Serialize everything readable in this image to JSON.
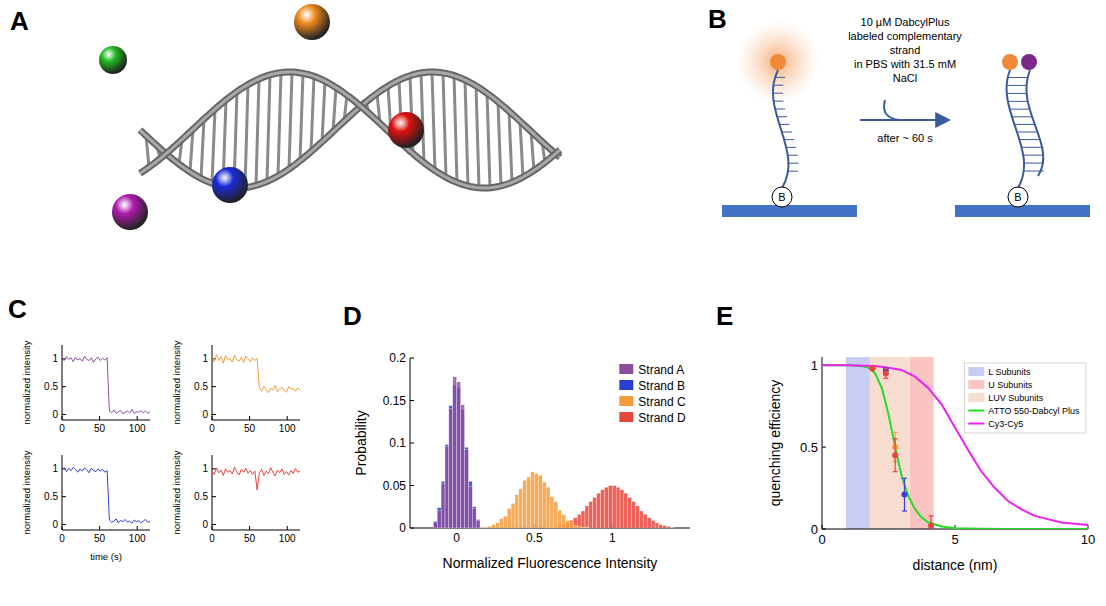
{
  "panel_labels": [
    "A",
    "B",
    "C",
    "D",
    "E"
  ],
  "diagram_b": {
    "reagent_lines": [
      "10 µM DabcylPlus",
      "labeled complementary",
      "strand",
      "in PBS with 31.5 mM",
      "NaCl"
    ],
    "time_text": "after ~ 60 s",
    "base_label": "B"
  },
  "chart_data": [
    {
      "type": "line",
      "ylabel": "normalized intensity",
      "color": "#8e4d9c",
      "xlim": [
        0,
        117
      ],
      "xticks": [
        0,
        50,
        100
      ],
      "ylim": [
        -0.1,
        1.25
      ],
      "yticks": [
        0,
        0.5,
        1
      ],
      "x": [
        0,
        3,
        6,
        9,
        12,
        15,
        18,
        21,
        24,
        27,
        30,
        33,
        36,
        39,
        42,
        45,
        48,
        51,
        54,
        57,
        60,
        63,
        66,
        69,
        72,
        75,
        78,
        81,
        84,
        87,
        90,
        93,
        96,
        99,
        102,
        105,
        108,
        111,
        114,
        117
      ],
      "values": [
        1.0,
        0.97,
        1.04,
        0.99,
        1.02,
        0.95,
        1.03,
        0.98,
        1.01,
        0.96,
        1.05,
        0.99,
        0.97,
        1.02,
        0.94,
        1.0,
        1.03,
        0.97,
        1.01,
        0.98,
        1.02,
        0.06,
        0.03,
        0.08,
        0.02,
        0.05,
        0.07,
        0.01,
        0.04,
        0.06,
        0.03,
        0.09,
        0.02,
        0.05,
        0.04,
        0.07,
        0.03,
        0.06,
        0.02,
        0.05
      ]
    },
    {
      "type": "line",
      "ylabel": "normalized intensity",
      "color": "#f5a03a",
      "xlim": [
        0,
        117
      ],
      "xticks": [
        0,
        50,
        100
      ],
      "ylim": [
        -0.1,
        1.25
      ],
      "yticks": [
        0,
        0.5,
        1
      ],
      "x": [
        0,
        3,
        6,
        9,
        12,
        15,
        18,
        21,
        24,
        27,
        30,
        33,
        36,
        39,
        42,
        45,
        48,
        51,
        54,
        57,
        60,
        63,
        66,
        69,
        72,
        75,
        78,
        81,
        84,
        87,
        90,
        93,
        96,
        99,
        102,
        105,
        108,
        111,
        114,
        117
      ],
      "values": [
        1.02,
        0.95,
        1.08,
        0.97,
        1.04,
        0.92,
        1.06,
        0.99,
        1.01,
        0.94,
        1.07,
        0.98,
        0.96,
        1.03,
        0.93,
        1.05,
        1.0,
        0.95,
        1.02,
        0.97,
        1.01,
        0.48,
        0.42,
        0.51,
        0.45,
        0.39,
        0.47,
        0.44,
        0.52,
        0.41,
        0.46,
        0.49,
        0.43,
        0.4,
        0.5,
        0.45,
        0.47,
        0.42,
        0.48,
        0.44
      ]
    },
    {
      "type": "line",
      "ylabel": "normalized intensity",
      "xlabel": "time (s)",
      "color": "#3b3fd8",
      "xlim": [
        0,
        117
      ],
      "xticks": [
        0,
        50,
        100
      ],
      "ylim": [
        -0.1,
        1.25
      ],
      "yticks": [
        0,
        0.5,
        1
      ],
      "x": [
        0,
        3,
        6,
        9,
        12,
        15,
        18,
        21,
        24,
        27,
        30,
        33,
        36,
        39,
        42,
        45,
        48,
        51,
        54,
        57,
        60,
        63,
        66,
        69,
        72,
        75,
        78,
        81,
        84,
        87,
        90,
        93,
        96,
        99,
        102,
        105,
        108,
        111,
        114,
        117
      ],
      "values": [
        0.98,
        1.02,
        0.95,
        1.01,
        0.97,
        1.03,
        0.99,
        0.94,
        1.0,
        0.96,
        1.02,
        0.98,
        0.93,
        1.01,
        0.97,
        0.95,
        1.0,
        0.96,
        0.99,
        0.94,
        0.97,
        0.08,
        0.04,
        0.06,
        0.1,
        0.03,
        0.07,
        0.05,
        0.09,
        0.04,
        0.06,
        0.02,
        0.08,
        0.05,
        0.07,
        0.03,
        0.06,
        0.09,
        0.04,
        0.05
      ]
    },
    {
      "type": "line",
      "ylabel": "normalized intensity",
      "color": "#e8453c",
      "xlim": [
        0,
        117
      ],
      "xticks": [
        0,
        50,
        100
      ],
      "ylim": [
        -0.1,
        1.25
      ],
      "yticks": [
        0,
        0.5,
        1
      ],
      "x": [
        0,
        3,
        6,
        9,
        12,
        15,
        18,
        21,
        24,
        27,
        30,
        33,
        36,
        39,
        42,
        45,
        48,
        51,
        54,
        57,
        60,
        63,
        66,
        69,
        72,
        75,
        78,
        81,
        84,
        87,
        90,
        93,
        96,
        99,
        102,
        105,
        108,
        111,
        114,
        117
      ],
      "values": [
        0.96,
        0.9,
        1.02,
        0.93,
        0.98,
        0.88,
        1.0,
        0.94,
        0.97,
        0.91,
        1.03,
        0.95,
        0.89,
        0.99,
        0.94,
        1.01,
        0.92,
        0.97,
        0.9,
        0.96,
        0.62,
        0.93,
        0.99,
        0.88,
        0.96,
        0.91,
        1.02,
        0.94,
        0.87,
        0.98,
        0.93,
        1.0,
        0.9,
        0.95,
        0.89,
        0.97,
        0.92,
        1.01,
        0.94,
        0.96
      ]
    },
    {
      "type": "histogram",
      "xlabel": "Normalized Fluorescence Intensity",
      "ylabel": "Probability",
      "xlim": [
        -0.3,
        1.5
      ],
      "xticks": [
        0,
        0.5,
        1
      ],
      "ylim": [
        0,
        0.2
      ],
      "yticks": [
        0,
        0.05,
        0.1,
        0.15,
        0.2
      ],
      "legend": "top-right",
      "series": [
        {
          "name": "Strand A",
          "color": "#8e4d9c",
          "bins": [
            -0.15,
            -0.125,
            -0.1,
            -0.075,
            -0.05,
            -0.025,
            0,
            0.025,
            0.05,
            0.075,
            0.1,
            0.125,
            0.15
          ],
          "values": [
            0.007,
            0.021,
            0.052,
            0.096,
            0.141,
            0.178,
            0.172,
            0.145,
            0.092,
            0.049,
            0.023,
            0.009
          ]
        },
        {
          "name": "Strand B",
          "color": "#2c3fd4",
          "bins": [
            -0.15,
            -0.125,
            -0.1,
            -0.075,
            -0.05,
            -0.025,
            0,
            0.025,
            0.05,
            0.075,
            0.1,
            0.125,
            0.15
          ],
          "values": [
            0.008,
            0.024,
            0.055,
            0.098,
            0.144,
            0.168,
            0.165,
            0.139,
            0.095,
            0.055,
            0.025,
            0.01
          ]
        },
        {
          "name": "Strand C",
          "color": "#f39c3c",
          "bins": [
            0.15,
            0.175,
            0.2,
            0.225,
            0.25,
            0.275,
            0.3,
            0.325,
            0.35,
            0.375,
            0.4,
            0.425,
            0.45,
            0.475,
            0.5,
            0.525,
            0.55,
            0.575,
            0.6,
            0.625,
            0.65,
            0.675,
            0.7,
            0.725,
            0.75,
            0.775,
            0.8,
            0.825,
            0.85
          ],
          "values": [
            0.001,
            0.001,
            0.002,
            0.004,
            0.006,
            0.011,
            0.014,
            0.023,
            0.029,
            0.039,
            0.046,
            0.056,
            0.06,
            0.066,
            0.064,
            0.062,
            0.054,
            0.048,
            0.037,
            0.031,
            0.021,
            0.016,
            0.009,
            0.007,
            0.003,
            0.002,
            0.001,
            0.001
          ]
        },
        {
          "name": "Strand D",
          "color": "#e8473c",
          "bins": [
            0.6,
            0.625,
            0.65,
            0.675,
            0.7,
            0.725,
            0.75,
            0.775,
            0.8,
            0.825,
            0.85,
            0.875,
            0.9,
            0.925,
            0.95,
            0.975,
            1,
            1.025,
            1.05,
            1.075,
            1.1,
            1.125,
            1.15,
            1.175,
            1.2,
            1.225,
            1.25,
            1.275,
            1.3,
            1.325,
            1.35,
            1.375,
            1.4
          ],
          "values": [
            0.001,
            0.002,
            0.003,
            0.004,
            0.006,
            0.009,
            0.012,
            0.016,
            0.02,
            0.026,
            0.031,
            0.036,
            0.041,
            0.045,
            0.048,
            0.05,
            0.05,
            0.048,
            0.045,
            0.041,
            0.036,
            0.031,
            0.026,
            0.02,
            0.016,
            0.012,
            0.009,
            0.006,
            0.004,
            0.003,
            0.002,
            0.001
          ]
        }
      ]
    },
    {
      "type": "line",
      "xlabel": "distance (nm)",
      "ylabel": "quenching efficiency",
      "xlim": [
        0,
        10
      ],
      "xticks": [
        0,
        5,
        10
      ],
      "ylim": [
        0,
        1.05
      ],
      "yticks": [
        0,
        0.5,
        1
      ],
      "legend": "top-right",
      "bands": [
        {
          "name": "L Subunits",
          "color": "#c9cdf4",
          "range": [
            0.9,
            1.8
          ]
        },
        {
          "name": "U Subunits",
          "color": "#f9c4c2",
          "range": [
            3.3,
            4.2
          ]
        },
        {
          "name": "LUV Subunits",
          "color": "#f6ddd0",
          "range": [
            1.8,
            3.3
          ]
        }
      ],
      "series": [
        {
          "name": "ATTO 550-Dabcyl Plus",
          "color": "#22dd22",
          "x": [
            0,
            1,
            1.5,
            1.75,
            2,
            2.25,
            2.5,
            2.75,
            3,
            3.25,
            3.5,
            3.75,
            4,
            4.5,
            5,
            6,
            7,
            8,
            9,
            10
          ],
          "values": [
            1,
            1,
            0.995,
            0.985,
            0.95,
            0.86,
            0.7,
            0.5,
            0.32,
            0.2,
            0.12,
            0.07,
            0.04,
            0.015,
            0.005,
            0.001,
            0,
            0,
            0,
            0
          ]
        },
        {
          "name": "Cy3-Cy5",
          "color": "#ee22ee",
          "x": [
            0,
            1,
            2,
            2.5,
            3,
            3.5,
            4,
            4.5,
            5,
            5.5,
            6,
            6.5,
            7,
            7.5,
            8,
            9,
            10
          ],
          "values": [
            1,
            1,
            0.995,
            0.985,
            0.97,
            0.93,
            0.86,
            0.76,
            0.62,
            0.48,
            0.35,
            0.25,
            0.17,
            0.12,
            0.08,
            0.04,
            0.025
          ]
        }
      ],
      "points": {
        "x": [
          1.9,
          2.4,
          2.4,
          2.75,
          2.75,
          3.1,
          4.1
        ],
        "values": [
          0.98,
          0.97,
          0.95,
          0.5,
          0.45,
          0.21,
          0.02
        ],
        "errors": [
          0.01,
          0.01,
          0.03,
          0.09,
          0.1,
          0.1,
          0.06
        ],
        "colors": [
          "#e8453c",
          "#3b3fd8",
          "#e8453c",
          "#f39c3c",
          "#e8453c",
          "#3b3fd8",
          "#e8453c"
        ]
      }
    }
  ]
}
